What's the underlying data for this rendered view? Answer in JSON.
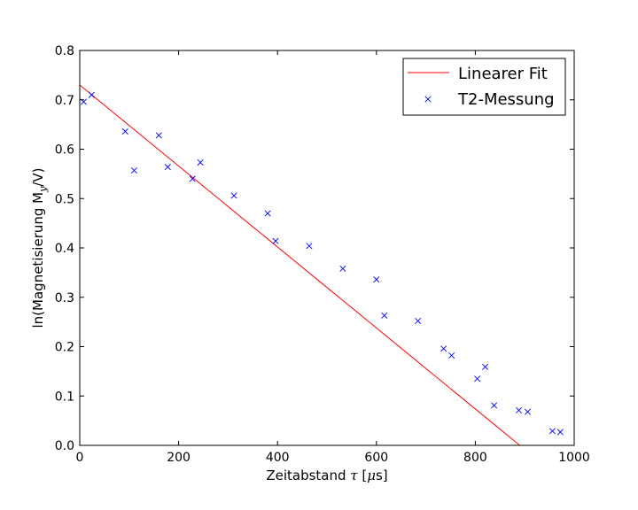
{
  "chart_data": {
    "type": "scatter",
    "xlabel_parts": [
      "Zeitabstand ",
      "τ",
      " [",
      "μ",
      "s]"
    ],
    "ylabel_parts": [
      "ln(Magnetisierung M",
      "y",
      "/V)"
    ],
    "xlim": [
      0,
      1000
    ],
    "ylim": [
      0.0,
      0.8
    ],
    "x_ticks": [
      0,
      200,
      400,
      600,
      800,
      1000
    ],
    "x_tick_labels": [
      "0",
      "200",
      "400",
      "600",
      "800",
      "1000"
    ],
    "y_ticks": [
      0.0,
      0.1,
      0.2,
      0.3,
      0.4,
      0.5,
      0.6,
      0.7,
      0.8
    ],
    "y_tick_labels": [
      "0.0",
      "0.1",
      "0.2",
      "0.3",
      "0.4",
      "0.5",
      "0.6",
      "0.7",
      "0.8"
    ],
    "grid": false,
    "legend_position": "top-right",
    "series": [
      {
        "name": "Linearer Fit",
        "kind": "line",
        "color": "#ff0000",
        "x": [
          0,
          890
        ],
        "y": [
          0.73,
          0.0
        ]
      },
      {
        "name": "T2-Messung",
        "kind": "scatter",
        "marker": "x",
        "color": "#0000ff",
        "x": [
          8,
          24,
          92,
          110,
          160,
          178,
          228,
          244,
          312,
          380,
          396,
          464,
          532,
          600,
          616,
          684,
          736,
          752,
          804,
          820,
          838,
          888,
          906,
          956,
          972
        ],
        "y": [
          0.696,
          0.71,
          0.636,
          0.557,
          0.628,
          0.564,
          0.54,
          0.573,
          0.506,
          0.47,
          0.414,
          0.404,
          0.358,
          0.336,
          0.263,
          0.252,
          0.196,
          0.182,
          0.135,
          0.159,
          0.081,
          0.071,
          0.068,
          0.029,
          0.027
        ]
      }
    ]
  }
}
